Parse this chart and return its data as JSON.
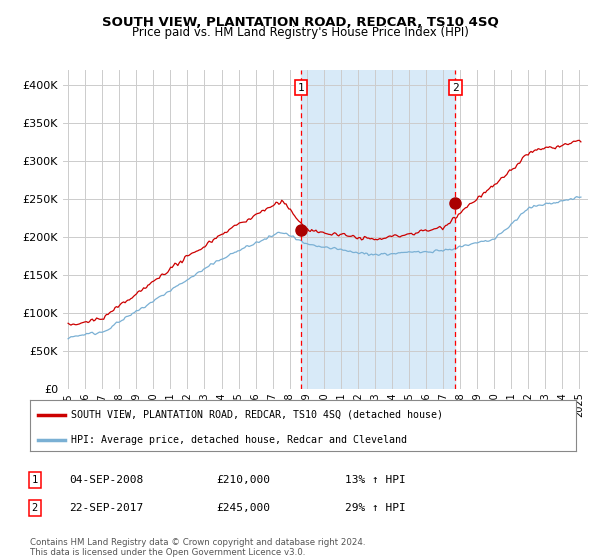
{
  "title": "SOUTH VIEW, PLANTATION ROAD, REDCAR, TS10 4SQ",
  "subtitle": "Price paid vs. HM Land Registry's House Price Index (HPI)",
  "legend_line1": "SOUTH VIEW, PLANTATION ROAD, REDCAR, TS10 4SQ (detached house)",
  "legend_line2": "HPI: Average price, detached house, Redcar and Cleveland",
  "annotation1_label": "1",
  "annotation1_date": "04-SEP-2008",
  "annotation1_price": "£210,000",
  "annotation1_hpi": "13% ↑ HPI",
  "annotation2_label": "2",
  "annotation2_date": "22-SEP-2017",
  "annotation2_price": "£245,000",
  "annotation2_hpi": "29% ↑ HPI",
  "footer": "Contains HM Land Registry data © Crown copyright and database right 2024.\nThis data is licensed under the Open Government Licence v3.0.",
  "sale1_year": 2008.67,
  "sale1_price": 210000,
  "sale2_year": 2017.72,
  "sale2_price": 245000,
  "line_color_property": "#cc0000",
  "line_color_hpi": "#7ab0d4",
  "background_color": "#ffffff",
  "grid_color": "#cccccc",
  "shaded_region_color": "#d8eaf8",
  "ylim": [
    0,
    420000
  ],
  "yticks": [
    0,
    50000,
    100000,
    150000,
    200000,
    250000,
    300000,
    350000,
    400000
  ],
  "ytick_labels": [
    "£0",
    "£50K",
    "£100K",
    "£150K",
    "£200K",
    "£250K",
    "£300K",
    "£350K",
    "£400K"
  ],
  "xlim_start": 1994.7,
  "xlim_end": 2025.5
}
